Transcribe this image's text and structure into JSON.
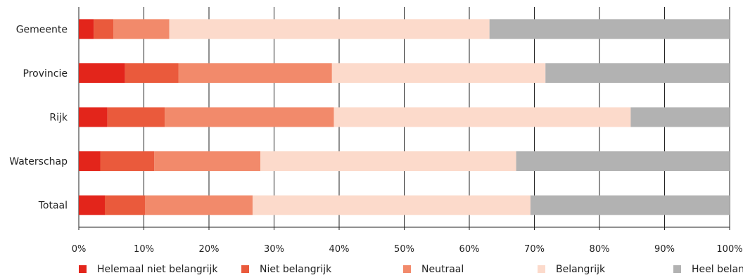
{
  "chart_data": {
    "type": "bar",
    "orientation": "horizontal",
    "stacked": true,
    "categories": [
      "Gemeente",
      "Provincie",
      "Rijk",
      "Waterschap",
      "Totaal"
    ],
    "series": [
      {
        "name": "Helemaal niet belangrijk",
        "color": "#e3251b",
        "values": [
          2.3,
          7.1,
          4.4,
          3.3,
          4.0
        ]
      },
      {
        "name": "Niet belangrijk",
        "color": "#ea5a3c",
        "values": [
          3.0,
          8.2,
          8.8,
          8.3,
          6.2
        ]
      },
      {
        "name": "Neutraal",
        "color": "#f28a6b",
        "values": [
          8.6,
          23.6,
          26.0,
          16.3,
          16.5
        ]
      },
      {
        "name": "Belangrijk",
        "color": "#fcdacb",
        "values": [
          49.2,
          32.8,
          45.6,
          39.3,
          42.7
        ]
      },
      {
        "name": "Heel belangrijk",
        "color": "#b2b2b2",
        "values": [
          36.9,
          28.3,
          15.2,
          32.8,
          30.6
        ]
      }
    ],
    "xlim": [
      0,
      100
    ],
    "xticks": [
      "0%",
      "10%",
      "20%",
      "30%",
      "40%",
      "50%",
      "60%",
      "70%",
      "80%",
      "90%",
      "100%"
    ],
    "grid": true,
    "legend": "bottom"
  }
}
